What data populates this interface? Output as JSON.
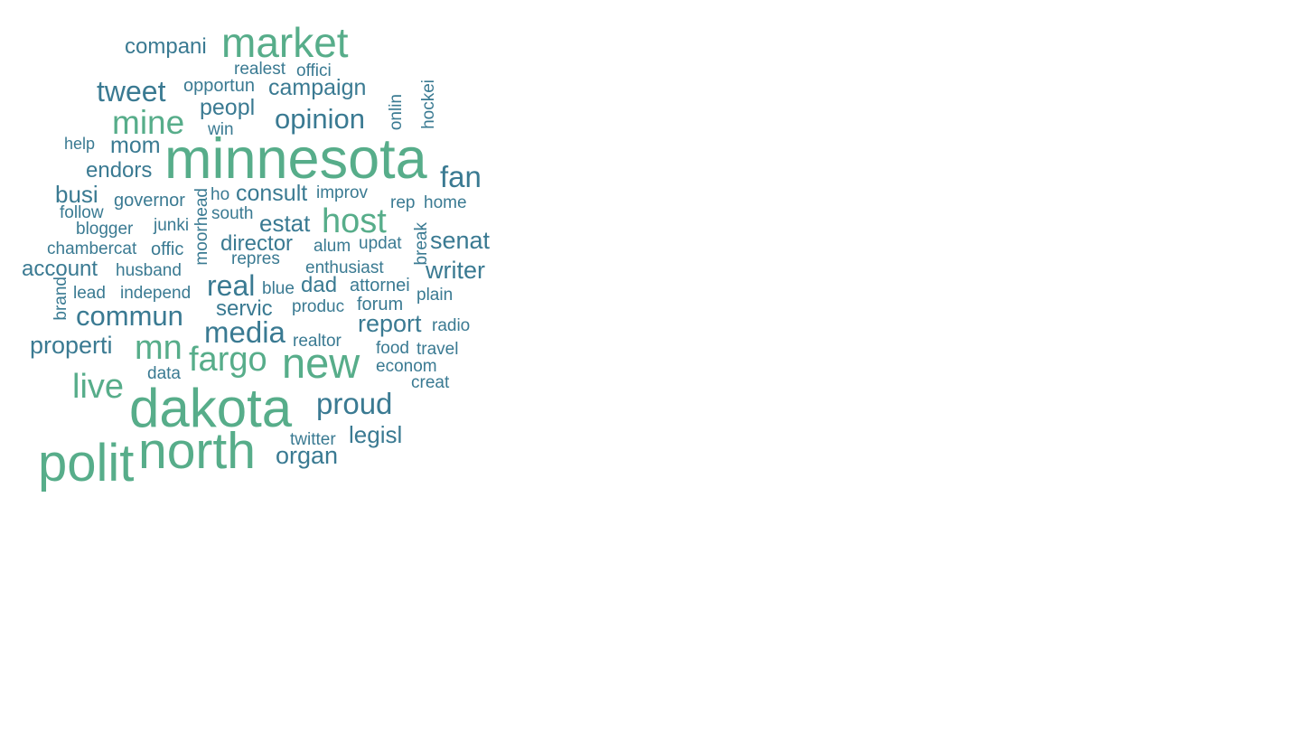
{
  "colors": {
    "background": "#ffffff",
    "green": "#57ad8a",
    "blue": "#3a7a92"
  },
  "words": {
    "compani": "compani",
    "market": "market",
    "realest": "realest",
    "offici": "offici",
    "tweet": "tweet",
    "opportun": "opportun",
    "campaign": "campaign",
    "mine": "mine",
    "peopl": "peopl",
    "opinion": "opinion",
    "onlin": "onlin",
    "hockei": "hockei",
    "win": "win",
    "help": "help",
    "mom": "mom",
    "minnesota": "minnesota",
    "endors": "endors",
    "fan": "fan",
    "busi": "busi",
    "governor": "governor",
    "moorhead": "moorhead",
    "ho": "ho",
    "consult": "consult",
    "improv": "improv",
    "follow": "follow",
    "rep": "rep",
    "home": "home",
    "south": "south",
    "junki": "junki",
    "estat": "estat",
    "host": "host",
    "blogger": "blogger",
    "break": "break",
    "chambercat": "chambercat",
    "offic": "offic",
    "director": "director",
    "alum": "alum",
    "updat": "updat",
    "senat": "senat",
    "repres": "repres",
    "account": "account",
    "husband": "husband",
    "enthusiast": "enthusiast",
    "writer": "writer",
    "real": "real",
    "brand": "brand",
    "blue": "blue",
    "dad": "dad",
    "attornei": "attornei",
    "lead": "lead",
    "independ": "independ",
    "plain": "plain",
    "commun": "commun",
    "servic": "servic",
    "produc": "produc",
    "forum": "forum",
    "report": "report",
    "media": "media",
    "radio": "radio",
    "properti": "properti",
    "mn": "mn",
    "realtor": "realtor",
    "food": "food",
    "travel": "travel",
    "fargo": "fargo",
    "new": "new",
    "econom": "econom",
    "data": "data",
    "live": "live",
    "creat": "creat",
    "dakota": "dakota",
    "proud": "proud",
    "legisl": "legisl",
    "twitter": "twitter",
    "north": "north",
    "polit": "polit",
    "organ": "organ"
  }
}
